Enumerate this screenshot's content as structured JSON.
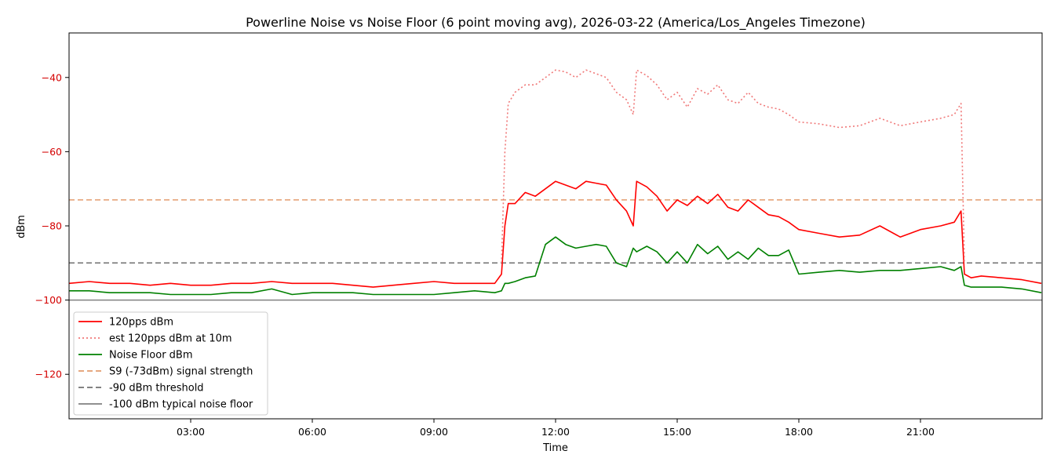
{
  "chart_data": {
    "type": "line",
    "title": "Powerline Noise vs Noise Floor (6 point moving avg), 2026-03-22 (America/Los_Angeles Timezone)",
    "xlabel": "Time",
    "ylabel": "dBm",
    "xlim": [
      "00:00",
      "24:00"
    ],
    "ylim": [
      -132,
      -28
    ],
    "grid": false,
    "legend_position": "lower-left",
    "x_ticks": [
      "03:00",
      "06:00",
      "09:00",
      "12:00",
      "15:00",
      "18:00",
      "21:00"
    ],
    "y_ticks": [
      -40,
      -60,
      -80,
      -100,
      -120
    ],
    "x": [
      "00:00",
      "00:30",
      "01:00",
      "01:30",
      "02:00",
      "02:30",
      "03:00",
      "03:30",
      "04:00",
      "04:30",
      "05:00",
      "05:30",
      "06:00",
      "06:30",
      "07:00",
      "07:30",
      "08:00",
      "08:30",
      "09:00",
      "09:30",
      "10:00",
      "10:30",
      "10:40",
      "10:45",
      "10:50",
      "11:00",
      "11:15",
      "11:30",
      "11:45",
      "12:00",
      "12:15",
      "12:30",
      "12:45",
      "13:00",
      "13:15",
      "13:30",
      "13:45",
      "13:55",
      "14:00",
      "14:15",
      "14:30",
      "14:45",
      "15:00",
      "15:15",
      "15:30",
      "15:45",
      "16:00",
      "16:15",
      "16:30",
      "16:45",
      "17:00",
      "17:15",
      "17:30",
      "17:45",
      "18:00",
      "18:30",
      "19:00",
      "19:30",
      "20:00",
      "20:30",
      "21:00",
      "21:30",
      "21:50",
      "22:00",
      "22:05",
      "22:15",
      "22:30",
      "23:00",
      "23:30",
      "23:59"
    ],
    "series": [
      {
        "name": "120pps dBm",
        "color": "#ff0000",
        "style": "solid",
        "values": [
          -95.5,
          -95,
          -95.5,
          -95.5,
          -96,
          -95.5,
          -96,
          -96,
          -95.5,
          -95.5,
          -95,
          -95.5,
          -95.5,
          -95.5,
          -96,
          -96.5,
          -96,
          -95.5,
          -95,
          -95.5,
          -95.5,
          -95.5,
          -93,
          -80,
          -74,
          -74,
          -71,
          -72,
          -70,
          -68,
          -69,
          -70,
          -68,
          -68.5,
          -69,
          -73,
          -76,
          -80,
          -68,
          -69.5,
          -72,
          -76,
          -73,
          -74.5,
          -72,
          -74,
          -71.5,
          -75,
          -76,
          -73,
          -75,
          -77,
          -77.5,
          -79,
          -81,
          -82,
          -83,
          -82.5,
          -80,
          -83,
          -81,
          -80,
          -79,
          -76,
          -93,
          -94,
          -93.5,
          -94,
          -94.5,
          -95.5
        ]
      },
      {
        "name": "est 120pps dBm at 10m",
        "color": "#f07878",
        "style": "dotted",
        "values": [
          null,
          null,
          null,
          null,
          null,
          null,
          null,
          null,
          null,
          null,
          null,
          null,
          null,
          null,
          null,
          null,
          null,
          null,
          null,
          null,
          null,
          null,
          -90,
          -60,
          -47,
          -44,
          -42,
          -42,
          -40,
          -38,
          -38.5,
          -40,
          -38,
          -39,
          -40,
          -44,
          -46,
          -50,
          -38,
          -39.5,
          -42,
          -46,
          -44,
          -48,
          -43,
          -44.5,
          -42,
          -46,
          -47,
          -44,
          -47,
          -48,
          -48.5,
          -50,
          -52,
          -52.5,
          -53.5,
          -53,
          -51,
          -53,
          -52,
          -51,
          -50,
          -47,
          -90,
          null,
          null,
          null,
          null,
          null
        ]
      },
      {
        "name": "Noise Floor dBm",
        "color": "#008000",
        "style": "solid",
        "values": [
          -97.5,
          -97.5,
          -98,
          -98,
          -98,
          -98.5,
          -98.5,
          -98.5,
          -98,
          -98,
          -97,
          -98.5,
          -98,
          -98,
          -98,
          -98.5,
          -98.5,
          -98.5,
          -98.5,
          -98,
          -97.5,
          -98,
          -97.5,
          -95.5,
          -95.5,
          -95,
          -94,
          -93.5,
          -85,
          -83,
          -85,
          -86,
          -85.5,
          -85,
          -85.5,
          -90,
          -91,
          -86,
          -87,
          -85.5,
          -87,
          -90,
          -87,
          -90,
          -85,
          -87.5,
          -85.5,
          -89,
          -87,
          -89,
          -86,
          -88,
          -88,
          -86.5,
          -93,
          -92.5,
          -92,
          -92.5,
          -92,
          -92,
          -91.5,
          -91,
          -92,
          -91,
          -96,
          -96.5,
          -96.5,
          -96.5,
          -97,
          -98
        ]
      }
    ],
    "reference_lines": [
      {
        "name": "S9 (-73dBm) signal strength",
        "value": -73,
        "color": "#e39c6e",
        "style": "dashed"
      },
      {
        "name": "-90 dBm threshold",
        "value": -90,
        "color": "#707070",
        "style": "dashed"
      },
      {
        "name": "-100 dBm typical noise floor",
        "value": -100,
        "color": "#808080",
        "style": "solid"
      }
    ]
  }
}
